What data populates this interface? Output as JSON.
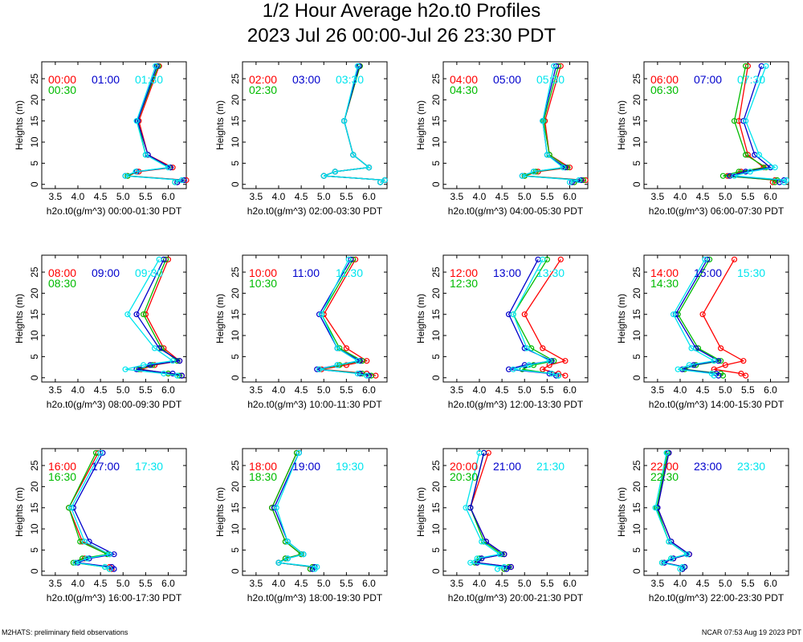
{
  "header": {
    "title": "1/2 Hour Average h2o.t0 Profiles",
    "subtitle": "2023 Jul 26 00:00-Jul 26 23:30 PDT"
  },
  "footer": {
    "left": "M2HATS: preliminary field observations",
    "right": "NCAR 07:53 Aug 19 2023 PDT"
  },
  "colors": {
    "red": "#ff0000",
    "blue": "#0000cc",
    "cyan": "#00e5ee",
    "green": "#00bb00"
  },
  "chart_data": [
    {
      "type": "line",
      "xlabel": "h2o.t0(g/m^3) 00:00-01:30 PDT",
      "ylabel": "Heights (m)",
      "xlim": [
        3.2,
        6.4
      ],
      "ylim": [
        -1,
        29
      ],
      "xticks": [
        "3.5",
        "4.0",
        "4.5",
        "5.0",
        "5.5",
        "6.0"
      ],
      "yticks": [
        "0",
        "5",
        "10",
        "15",
        "20",
        "25"
      ],
      "heights": [
        0.5,
        1,
        2,
        3,
        4,
        7,
        15,
        28
      ],
      "series": [
        {
          "name": "00:00",
          "color": "red",
          "values": [
            6.2,
            6.4,
            5.1,
            5.35,
            6.1,
            5.55,
            5.35,
            5.8
          ]
        },
        {
          "name": "00:30",
          "color": "green",
          "values": [
            6.15,
            6.35,
            5.1,
            5.3,
            6.05,
            5.5,
            5.32,
            5.78
          ]
        },
        {
          "name": "01:00",
          "color": "blue",
          "values": [
            6.2,
            6.35,
            5.05,
            5.3,
            6.05,
            5.55,
            5.32,
            5.75
          ]
        },
        {
          "name": "01:30",
          "color": "cyan",
          "values": [
            6.15,
            6.3,
            5.05,
            5.28,
            6.0,
            5.5,
            5.3,
            5.72
          ]
        }
      ]
    },
    {
      "type": "line",
      "xlabel": "h2o.t0(g/m^3) 02:00-03:30 PDT",
      "ylabel": "Heights (m)",
      "xlim": [
        3.2,
        6.4
      ],
      "ylim": [
        -1,
        29
      ],
      "xticks": [
        "3.5",
        "4.0",
        "4.5",
        "5.0",
        "5.5",
        "6.0"
      ],
      "yticks": [
        "0",
        "5",
        "10",
        "15",
        "20",
        "25"
      ],
      "heights": [
        0.5,
        1,
        2,
        3,
        4,
        7,
        15,
        28
      ],
      "series": [
        {
          "name": "02:00",
          "color": "red",
          "values": [
            6.25,
            6.35,
            5.0,
            5.25,
            6.0,
            5.65,
            5.45,
            5.8
          ]
        },
        {
          "name": "02:30",
          "color": "green",
          "values": [
            6.25,
            6.35,
            5.0,
            5.25,
            6.0,
            5.65,
            5.45,
            5.8
          ]
        },
        {
          "name": "03:00",
          "color": "blue",
          "values": [
            6.25,
            6.35,
            5.0,
            5.25,
            6.0,
            5.65,
            5.45,
            5.78
          ]
        },
        {
          "name": "03:30",
          "color": "cyan",
          "values": [
            6.25,
            6.35,
            5.0,
            5.25,
            6.0,
            5.65,
            5.45,
            5.75
          ]
        }
      ]
    },
    {
      "type": "line",
      "xlabel": "h2o.t0(g/m^3) 04:00-05:30 PDT",
      "ylabel": "Heights (m)",
      "xlim": [
        3.2,
        6.4
      ],
      "ylim": [
        -1,
        29
      ],
      "xticks": [
        "3.5",
        "4.0",
        "4.5",
        "5.0",
        "5.5",
        "6.0"
      ],
      "yticks": [
        "0",
        "5",
        "10",
        "15",
        "20",
        "25"
      ],
      "heights": [
        0.5,
        1,
        2,
        3,
        4,
        7,
        15,
        28
      ],
      "series": [
        {
          "name": "04:00",
          "color": "red",
          "values": [
            6.1,
            6.35,
            5.0,
            5.3,
            6.0,
            5.55,
            5.45,
            5.8
          ]
        },
        {
          "name": "04:30",
          "color": "green",
          "values": [
            6.1,
            6.3,
            5.0,
            5.25,
            5.95,
            5.55,
            5.42,
            5.75
          ]
        },
        {
          "name": "05:00",
          "color": "blue",
          "values": [
            6.05,
            6.25,
            4.95,
            5.2,
            5.9,
            5.5,
            5.4,
            5.7
          ]
        },
        {
          "name": "05:30",
          "color": "cyan",
          "values": [
            6.0,
            6.2,
            4.95,
            5.2,
            5.85,
            5.5,
            5.4,
            5.65
          ]
        }
      ]
    },
    {
      "type": "line",
      "xlabel": "h2o.t0(g/m^3) 06:00-07:30 PDT",
      "ylabel": "Heights (m)",
      "xlim": [
        3.2,
        6.4
      ],
      "ylim": [
        -1,
        29
      ],
      "xticks": [
        "3.5",
        "4.0",
        "4.5",
        "5.0",
        "5.5",
        "6.0"
      ],
      "yticks": [
        "0",
        "5",
        "10",
        "15",
        "20",
        "25"
      ],
      "heights": [
        0.5,
        1,
        2,
        3,
        4,
        7,
        15,
        28
      ],
      "series": [
        {
          "name": "06:00",
          "color": "red",
          "values": [
            6.05,
            6.1,
            5.05,
            5.35,
            5.85,
            5.5,
            5.3,
            5.5
          ]
        },
        {
          "name": "06:30",
          "color": "green",
          "values": [
            6.1,
            6.15,
            4.95,
            5.3,
            5.9,
            5.45,
            5.2,
            5.45
          ]
        },
        {
          "name": "07:00",
          "color": "blue",
          "values": [
            6.2,
            6.3,
            5.1,
            5.45,
            6.0,
            5.65,
            5.4,
            5.8
          ]
        },
        {
          "name": "07:30",
          "color": "cyan",
          "values": [
            6.3,
            6.35,
            5.2,
            5.55,
            6.1,
            5.75,
            5.45,
            5.9
          ]
        }
      ]
    },
    {
      "type": "line",
      "xlabel": "h2o.t0(g/m^3) 08:00-09:30 PDT",
      "ylabel": "Heights (m)",
      "xlim": [
        3.2,
        6.4
      ],
      "ylim": [
        -1,
        29
      ],
      "xticks": [
        "3.5",
        "4.0",
        "4.5",
        "5.0",
        "5.5",
        "6.0"
      ],
      "yticks": [
        "0",
        "5",
        "10",
        "15",
        "20",
        "25"
      ],
      "heights": [
        0.5,
        1,
        2,
        3,
        4,
        7,
        15,
        28
      ],
      "series": [
        {
          "name": "08:00",
          "color": "red",
          "values": [
            6.3,
            6.0,
            5.4,
            5.7,
            6.25,
            5.9,
            5.5,
            6.0
          ]
        },
        {
          "name": "08:30",
          "color": "green",
          "values": [
            6.25,
            6.0,
            5.35,
            5.65,
            6.2,
            5.85,
            5.45,
            5.95
          ]
        },
        {
          "name": "09:00",
          "color": "blue",
          "values": [
            6.3,
            6.1,
            5.3,
            5.6,
            6.25,
            5.8,
            5.3,
            5.9
          ]
        },
        {
          "name": "09:30",
          "color": "cyan",
          "values": [
            6.2,
            5.9,
            5.05,
            5.45,
            6.1,
            5.7,
            5.1,
            5.8
          ]
        }
      ]
    },
    {
      "type": "line",
      "xlabel": "h2o.t0(g/m^3) 10:00-11:30 PDT",
      "ylabel": "Heights (m)",
      "xlim": [
        3.2,
        6.4
      ],
      "ylim": [
        -1,
        29
      ],
      "xticks": [
        "3.5",
        "4.0",
        "4.5",
        "5.0",
        "5.5",
        "6.0"
      ],
      "yticks": [
        "0",
        "5",
        "10",
        "15",
        "20",
        "25"
      ],
      "heights": [
        0.5,
        1,
        2,
        3,
        4,
        7,
        15,
        28
      ],
      "series": [
        {
          "name": "10:00",
          "color": "red",
          "values": [
            6.15,
            5.95,
            4.95,
            5.5,
            5.95,
            5.5,
            5.0,
            5.7
          ]
        },
        {
          "name": "10:30",
          "color": "green",
          "values": [
            6.05,
            5.85,
            4.9,
            5.35,
            5.85,
            5.35,
            4.95,
            5.65
          ]
        },
        {
          "name": "11:00",
          "color": "blue",
          "values": [
            6.0,
            5.8,
            4.85,
            5.3,
            5.8,
            5.3,
            4.9,
            5.6
          ]
        },
        {
          "name": "11:30",
          "color": "cyan",
          "values": [
            5.95,
            5.75,
            4.9,
            5.3,
            5.75,
            5.3,
            4.95,
            5.55
          ]
        }
      ]
    },
    {
      "type": "line",
      "xlabel": "h2o.t0(g/m^3) 12:00-13:30 PDT",
      "ylabel": "Heights (m)",
      "xlim": [
        3.2,
        6.4
      ],
      "ylim": [
        -1,
        29
      ],
      "xticks": [
        "3.5",
        "4.0",
        "4.5",
        "5.0",
        "5.5",
        "6.0"
      ],
      "yticks": [
        "0",
        "5",
        "10",
        "15",
        "20",
        "25"
      ],
      "heights": [
        0.5,
        1,
        2,
        3,
        4,
        7,
        15,
        28
      ],
      "series": [
        {
          "name": "12:00",
          "color": "red",
          "values": [
            5.9,
            5.75,
            5.4,
            5.55,
            5.9,
            5.4,
            5.0,
            5.8
          ]
        },
        {
          "name": "12:30",
          "color": "green",
          "values": [
            5.75,
            5.6,
            4.95,
            5.2,
            5.65,
            5.15,
            4.75,
            5.5
          ]
        },
        {
          "name": "13:00",
          "color": "blue",
          "values": [
            5.7,
            5.55,
            4.65,
            5.0,
            5.6,
            5.0,
            4.65,
            5.3
          ]
        },
        {
          "name": "13:30",
          "color": "cyan",
          "values": [
            5.75,
            5.6,
            4.75,
            5.1,
            5.55,
            5.05,
            4.75,
            5.4
          ]
        }
      ]
    },
    {
      "type": "line",
      "xlabel": "h2o.t0(g/m^3) 14:00-15:30 PDT",
      "ylabel": "Heights (m)",
      "xlim": [
        3.2,
        6.4
      ],
      "ylim": [
        -1,
        29
      ],
      "xticks": [
        "3.5",
        "4.0",
        "4.5",
        "5.0",
        "5.5",
        "6.0"
      ],
      "yticks": [
        "0",
        "5",
        "10",
        "15",
        "20",
        "25"
      ],
      "heights": [
        0.5,
        1,
        2,
        3,
        4,
        7,
        15,
        28
      ],
      "series": [
        {
          "name": "14:00",
          "color": "red",
          "values": [
            5.45,
            5.35,
            4.75,
            5.0,
            5.4,
            4.9,
            4.5,
            5.2
          ]
        },
        {
          "name": "14:30",
          "color": "green",
          "values": [
            4.95,
            4.9,
            4.1,
            4.35,
            4.9,
            4.4,
            3.95,
            4.65
          ]
        },
        {
          "name": "15:00",
          "color": "blue",
          "values": [
            4.85,
            4.8,
            4.05,
            4.3,
            4.85,
            4.35,
            3.9,
            4.6
          ]
        },
        {
          "name": "15:30",
          "color": "cyan",
          "values": [
            4.75,
            4.7,
            3.95,
            4.2,
            4.75,
            4.25,
            3.85,
            4.55
          ]
        }
      ]
    },
    {
      "type": "line",
      "xlabel": "h2o.t0(g/m^3) 16:00-17:30 PDT",
      "ylabel": "Heights (m)",
      "xlim": [
        3.2,
        6.4
      ],
      "ylim": [
        -1,
        29
      ],
      "xticks": [
        "3.5",
        "4.0",
        "4.5",
        "5.0",
        "5.5",
        "6.0"
      ],
      "yticks": [
        "0",
        "5",
        "10",
        "15",
        "20",
        "25"
      ],
      "heights": [
        0.5,
        1,
        2,
        3,
        4,
        7,
        15,
        28
      ],
      "series": [
        {
          "name": "16:00",
          "color": "red",
          "values": [
            4.75,
            4.7,
            3.95,
            4.15,
            4.7,
            4.1,
            3.8,
            4.45
          ]
        },
        {
          "name": "16:30",
          "color": "green",
          "values": [
            4.7,
            4.6,
            3.9,
            4.1,
            4.65,
            4.05,
            3.8,
            4.4
          ]
        },
        {
          "name": "17:00",
          "color": "blue",
          "values": [
            4.8,
            4.75,
            4.0,
            4.25,
            4.8,
            4.25,
            3.9,
            4.55
          ]
        },
        {
          "name": "17:30",
          "color": "cyan",
          "values": [
            4.7,
            4.6,
            3.95,
            4.2,
            4.7,
            4.15,
            3.85,
            4.5
          ]
        }
      ]
    },
    {
      "type": "line",
      "xlabel": "h2o.t0(g/m^3) 18:00-19:30 PDT",
      "ylabel": "Heights (m)",
      "xlim": [
        3.2,
        6.4
      ],
      "ylim": [
        -1,
        29
      ],
      "xticks": [
        "3.5",
        "4.0",
        "4.5",
        "5.0",
        "5.5",
        "6.0"
      ],
      "yticks": [
        "0",
        "5",
        "10",
        "15",
        "20",
        "25"
      ],
      "heights": [
        0.5,
        1,
        2,
        3,
        4,
        7,
        15,
        28
      ],
      "series": [
        {
          "name": "18:00",
          "color": "red",
          "values": [
            4.7,
            4.75,
            4.0,
            4.15,
            4.5,
            4.15,
            3.85,
            4.4
          ]
        },
        {
          "name": "18:30",
          "color": "green",
          "values": [
            4.7,
            4.75,
            4.0,
            4.15,
            4.5,
            4.15,
            3.85,
            4.4
          ]
        },
        {
          "name": "19:00",
          "color": "blue",
          "values": [
            4.75,
            4.8,
            4.0,
            4.2,
            4.55,
            4.2,
            3.9,
            4.45
          ]
        },
        {
          "name": "19:30",
          "color": "cyan",
          "values": [
            4.8,
            4.85,
            4.0,
            4.2,
            4.55,
            4.2,
            3.95,
            4.45
          ]
        }
      ]
    },
    {
      "type": "line",
      "xlabel": "h2o.t0(g/m^3) 20:00-21:30 PDT",
      "ylabel": "Heights (m)",
      "xlim": [
        3.2,
        6.4
      ],
      "ylim": [
        -1,
        29
      ],
      "xticks": [
        "3.5",
        "4.0",
        "4.5",
        "5.0",
        "5.5",
        "6.0"
      ],
      "yticks": [
        "0",
        "5",
        "10",
        "15",
        "20",
        "25"
      ],
      "heights": [
        0.5,
        1,
        2,
        3,
        4,
        7,
        15,
        28
      ],
      "series": [
        {
          "name": "20:00",
          "color": "red",
          "values": [
            4.55,
            4.7,
            3.95,
            4.05,
            4.55,
            4.15,
            3.8,
            4.2
          ]
        },
        {
          "name": "20:30",
          "color": "green",
          "values": [
            4.55,
            4.65,
            3.9,
            4.0,
            4.5,
            4.1,
            3.8,
            4.1
          ]
        },
        {
          "name": "21:00",
          "color": "blue",
          "values": [
            4.6,
            4.7,
            3.95,
            4.05,
            4.55,
            4.15,
            3.8,
            4.1
          ]
        },
        {
          "name": "21:30",
          "color": "cyan",
          "values": [
            4.4,
            4.55,
            3.8,
            3.95,
            4.45,
            4.05,
            3.7,
            4.0
          ]
        }
      ]
    },
    {
      "type": "line",
      "xlabel": "h2o.t0(g/m^3) 22:00-23:30 PDT",
      "ylabel": "Heights (m)",
      "xlim": [
        3.2,
        6.4
      ],
      "ylim": [
        -1,
        29
      ],
      "xticks": [
        "3.5",
        "4.0",
        "4.5",
        "5.0",
        "5.5",
        "6.0"
      ],
      "yticks": [
        "0",
        "5",
        "10",
        "15",
        "20",
        "25"
      ],
      "heights": [
        0.5,
        1,
        2,
        3,
        4,
        7,
        15,
        28
      ],
      "series": [
        {
          "name": "22:00",
          "color": "red",
          "values": [
            4.05,
            4.1,
            3.65,
            3.85,
            4.2,
            3.8,
            3.5,
            3.75
          ]
        },
        {
          "name": "22:30",
          "color": "green",
          "values": [
            4.05,
            4.1,
            3.6,
            3.8,
            4.15,
            3.75,
            3.48,
            3.72
          ]
        },
        {
          "name": "23:00",
          "color": "blue",
          "values": [
            4.05,
            4.1,
            3.65,
            3.85,
            4.2,
            3.8,
            3.5,
            3.75
          ]
        },
        {
          "name": "23:30",
          "color": "cyan",
          "values": [
            4.0,
            4.05,
            3.6,
            3.8,
            4.15,
            3.75,
            3.45,
            3.7
          ]
        }
      ]
    }
  ]
}
